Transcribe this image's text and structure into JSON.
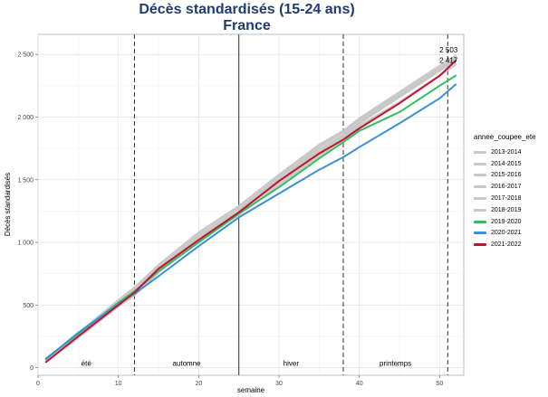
{
  "chart_data": {
    "type": "line",
    "title": "Décès standardisés (15-24 ans)",
    "subtitle": "France",
    "xlabel": "semaine",
    "ylabel": "Décès standardisés",
    "xlim": [
      0,
      53
    ],
    "ylim": [
      -60,
      2660
    ],
    "x_ticks": [
      0,
      10,
      20,
      30,
      40,
      50
    ],
    "y_ticks": [
      0,
      500,
      1000,
      1500,
      2000,
      2500
    ],
    "y_tick_labels": [
      "0",
      "500",
      "1 000",
      "1 500",
      "2 000",
      "2 500"
    ],
    "grid": true,
    "legend_title": "annee_coupee_ete",
    "legend_position": "right",
    "season_boundaries": [
      {
        "x": 12,
        "style": "dashed"
      },
      {
        "x": 25,
        "style": "solid"
      },
      {
        "x": 38,
        "style": "dashed"
      },
      {
        "x": 51,
        "style": "dashed"
      }
    ],
    "season_labels": [
      {
        "text": "été",
        "x": 6
      },
      {
        "text": "automne",
        "x": 18.5
      },
      {
        "text": "hiver",
        "x": 31.5
      },
      {
        "text": "printemps",
        "x": 44.5
      }
    ],
    "annotations": [
      {
        "text": "2 503",
        "x": 51,
        "y": 2503
      },
      {
        "text": "2 417",
        "x": 51,
        "y": 2417
      }
    ],
    "x": [
      1,
      5,
      10,
      12,
      15,
      20,
      25,
      30,
      35,
      38,
      40,
      45,
      50,
      52
    ],
    "series": [
      {
        "name": "2013-2014",
        "color": "#c8c8c8",
        "values": [
          60,
          260,
          520,
          620,
          800,
          1060,
          1270,
          1520,
          1760,
          1880,
          1980,
          2180,
          2390,
          2470
        ]
      },
      {
        "name": "2014-2015",
        "color": "#c8c8c8",
        "values": [
          55,
          250,
          500,
          590,
          770,
          1030,
          1240,
          1490,
          1720,
          1850,
          1950,
          2160,
          2370,
          2450
        ]
      },
      {
        "name": "2015-2016",
        "color": "#c8c8c8",
        "values": [
          65,
          275,
          540,
          640,
          820,
          1080,
          1290,
          1540,
          1780,
          1890,
          1990,
          2200,
          2410,
          2490
        ]
      },
      {
        "name": "2016-2017",
        "color": "#c8c8c8",
        "values": [
          50,
          240,
          490,
          580,
          760,
          1010,
          1220,
          1460,
          1690,
          1820,
          1920,
          2120,
          2330,
          2420
        ]
      },
      {
        "name": "2017-2018",
        "color": "#c8c8c8",
        "values": [
          60,
          255,
          510,
          600,
          780,
          1040,
          1250,
          1500,
          1740,
          1860,
          1960,
          2170,
          2380,
          2460
        ]
      },
      {
        "name": "2018-2019",
        "color": "#c8c8c8",
        "values": [
          55,
          245,
          500,
          595,
          775,
          1035,
          1245,
          1480,
          1700,
          1830,
          1930,
          2120,
          2330,
          2420
        ]
      },
      {
        "name": "2019-2020",
        "color": "#2fbf5f",
        "values": [
          75,
          270,
          520,
          610,
          770,
          1000,
          1230,
          1440,
          1670,
          1800,
          1890,
          2040,
          2250,
          2330
        ]
      },
      {
        "name": "2020-2021",
        "color": "#3b8fd6",
        "values": [
          70,
          280,
          510,
          590,
          730,
          970,
          1200,
          1390,
          1580,
          1680,
          1760,
          1950,
          2150,
          2260
        ]
      },
      {
        "name": "2021-2022",
        "color": "#c4122f",
        "values": [
          45,
          250,
          500,
          600,
          790,
          1020,
          1240,
          1490,
          1710,
          1820,
          1910,
          2110,
          2330,
          2450
        ]
      }
    ]
  }
}
